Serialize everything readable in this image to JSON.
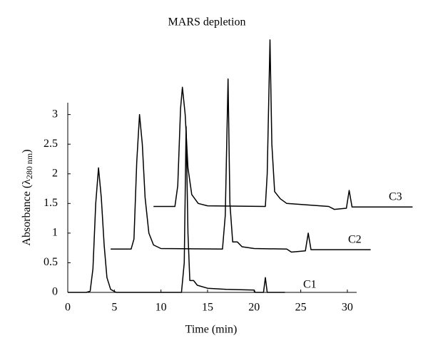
{
  "chart_data": {
    "type": "line",
    "title": "MARS depletion",
    "x_label": "Time (min)",
    "y_label": {
      "main": "Absorbance (λ",
      "sub": "280 nm",
      "end": ")"
    },
    "xlim": [
      0,
      31
    ],
    "xticks": [
      0,
      5,
      10,
      15,
      20,
      25,
      30
    ],
    "ylim": [
      0,
      3.2
    ],
    "yticks": [
      0,
      0.5,
      1,
      1.5,
      2,
      2.5,
      3
    ],
    "grid": false,
    "series": [
      {
        "name": "C1",
        "color": "#000000",
        "x": [
          0,
          2,
          2.4,
          2.7,
          3.0,
          3.3,
          3.6,
          3.9,
          4.2,
          4.6,
          5.2,
          12.2,
          12.5,
          12.7,
          12.9,
          13.1,
          13.5,
          13.9,
          15,
          17,
          20,
          20.1,
          21.0,
          21.2,
          21.4,
          23.3
        ],
        "values": [
          0,
          0,
          0.02,
          0.4,
          1.5,
          2.1,
          1.6,
          0.8,
          0.25,
          0.05,
          0,
          0,
          0.5,
          2.8,
          1.0,
          0.2,
          0.2,
          0.12,
          0.07,
          0.05,
          0.04,
          0,
          0,
          0.25,
          0,
          0
        ]
      },
      {
        "name": "C2",
        "color": "#000000",
        "x": [
          4.6,
          6.8,
          7.1,
          7.4,
          7.7,
          8.0,
          8.3,
          8.7,
          9.2,
          10,
          16.6,
          16.9,
          17.2,
          17.4,
          17.7,
          18.2,
          18.7,
          20,
          23.5,
          24,
          25.5,
          25.8,
          26.1,
          32.5
        ],
        "values": [
          0.73,
          0.73,
          0.9,
          2.2,
          3.0,
          2.5,
          1.6,
          1.0,
          0.8,
          0.74,
          0.73,
          1.3,
          3.6,
          1.5,
          0.85,
          0.85,
          0.77,
          0.74,
          0.73,
          0.68,
          0.7,
          1.0,
          0.72,
          0.72
        ]
      },
      {
        "name": "C3",
        "color": "#000000",
        "x": [
          9.2,
          11.5,
          11.8,
          12.1,
          12.3,
          12.6,
          12.9,
          13.3,
          14,
          15,
          21.2,
          21.4,
          21.7,
          21.9,
          22.2,
          22.8,
          23.5,
          28,
          28.6,
          29.9,
          30.2,
          30.5,
          37
        ],
        "values": [
          1.45,
          1.45,
          1.8,
          3.1,
          3.46,
          3.0,
          2.1,
          1.65,
          1.5,
          1.46,
          1.45,
          2.0,
          4.26,
          2.5,
          1.7,
          1.58,
          1.5,
          1.45,
          1.4,
          1.42,
          1.72,
          1.44,
          1.44
        ]
      }
    ]
  }
}
